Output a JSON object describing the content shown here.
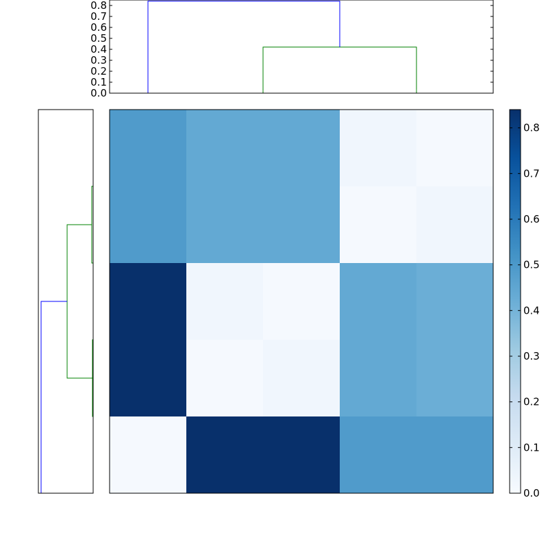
{
  "chart_data": [
    {
      "type": "heatmap",
      "title": "",
      "xlabel": "",
      "ylabel": "",
      "rows": 5,
      "cols": 5,
      "values": [
        [
          0.49,
          0.44,
          0.44,
          0.03,
          0.01
        ],
        [
          0.49,
          0.44,
          0.44,
          0.01,
          0.03
        ],
        [
          0.84,
          0.03,
          0.01,
          0.44,
          0.42
        ],
        [
          0.84,
          0.01,
          0.03,
          0.44,
          0.42
        ],
        [
          0.01,
          0.84,
          0.84,
          0.49,
          0.49
        ]
      ],
      "colormap": "Blues",
      "vmin": 0.0,
      "vmax": 0.84
    },
    {
      "type": "line",
      "title": "",
      "xlabel": "",
      "ylabel": "",
      "ylim": [
        0.0,
        0.85
      ],
      "y_ticks": [
        "0.0",
        "0.1",
        "0.2",
        "0.3",
        "0.4",
        "0.5",
        "0.6",
        "0.7",
        "0.8"
      ],
      "leaves": 5,
      "links": [
        {
          "left": 1.5,
          "right": 1.5,
          "left_height": 0.0,
          "right_height": 0.0,
          "height": 0.02,
          "children": [
            1,
            2
          ],
          "color": "#008000"
        },
        {
          "left": 3.5,
          "right": 3.5,
          "left_height": 0.0,
          "right_height": 0.0,
          "height": 0.03,
          "children": [
            3,
            4
          ],
          "color": "#008000"
        },
        {
          "left": 1.5,
          "right": 3.5,
          "left_height": 0.02,
          "right_height": 0.03,
          "height": 0.42,
          "color": "#008000"
        },
        {
          "left": 0.0,
          "right": 2.5,
          "left_height": 0.0,
          "right_height": 0.42,
          "height": 0.84,
          "color": "#0000ff"
        }
      ]
    },
    {
      "type": "line",
      "title": "",
      "xlabel": "",
      "ylabel": "",
      "leaves": 5,
      "links": [
        {
          "top": 0.5,
          "bottom": 1.5,
          "height": 0.02,
          "color": "#008000"
        },
        {
          "top": 2.5,
          "bottom": 3.5,
          "height": 0.01,
          "color": "#008000"
        },
        {
          "top": 1.0,
          "bottom": 3.0,
          "height": 0.38,
          "color": "#008000"
        },
        {
          "top": 2.0,
          "bottom": 4.5,
          "height": 0.76,
          "color": "#0000ff"
        }
      ]
    },
    {
      "type": "bar",
      "title": "",
      "xlabel": "",
      "ylabel": "",
      "colormap": "Blues",
      "ylim": [
        0.0,
        0.84
      ],
      "tick_values": [
        0.0,
        0.1,
        0.2,
        0.3,
        0.4,
        0.5,
        0.6,
        0.7,
        0.8
      ],
      "tick_labels": [
        "0.0",
        "0.1",
        "0.2",
        "0.3",
        "0.4",
        "0.5",
        "0.6",
        "0.7",
        "0.8"
      ]
    }
  ]
}
